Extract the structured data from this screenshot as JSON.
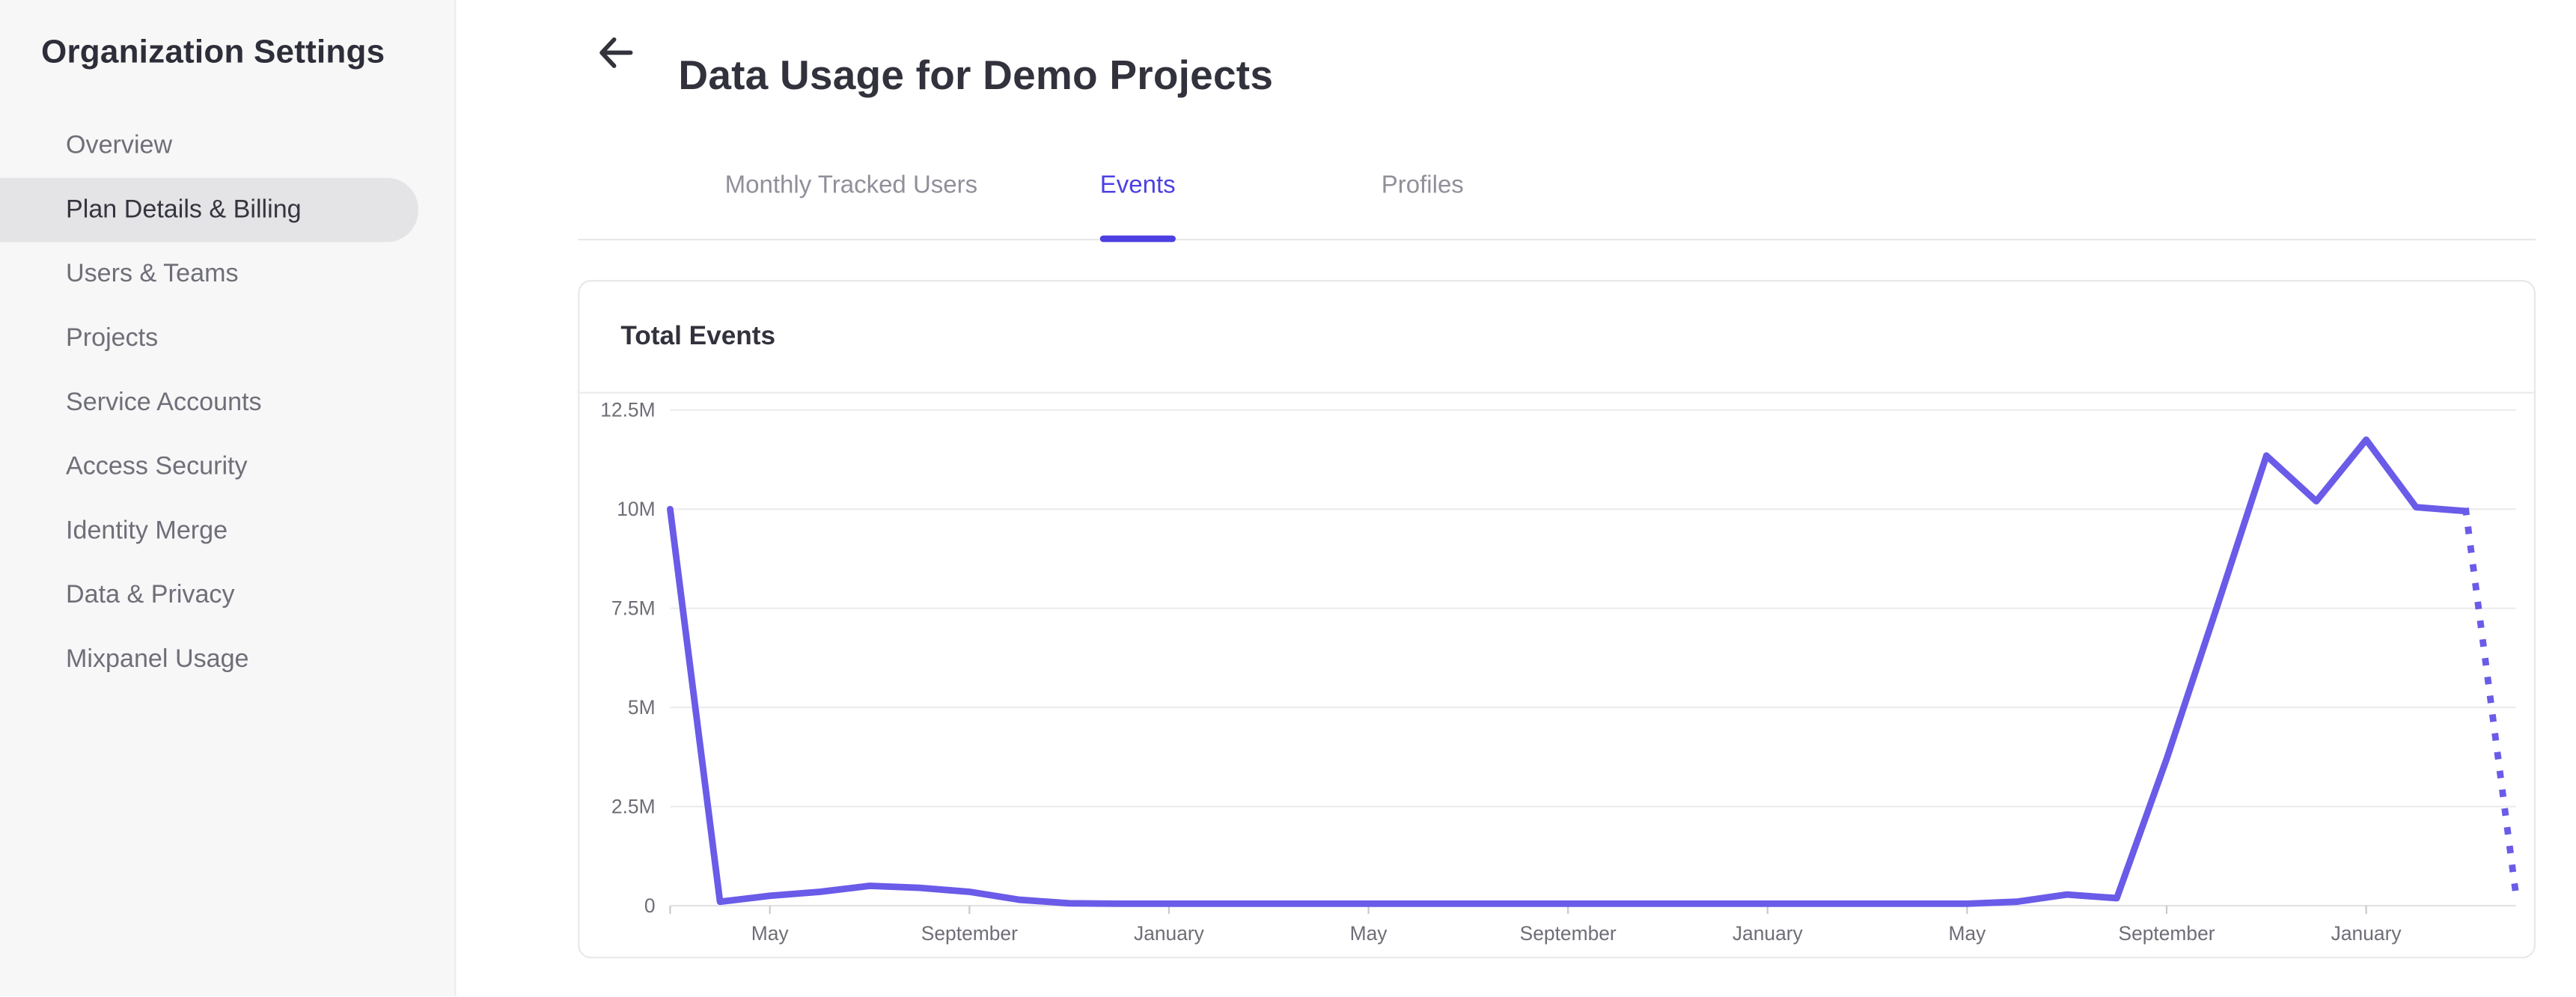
{
  "colors": {
    "accent": "#4c40e2",
    "chart_line": "#6a5be8",
    "sidebar_bg": "#f7f7f7",
    "active_pill_bg": "#e4e4e6",
    "grid_line": "#ececee"
  },
  "sidebar": {
    "title": "Organization Settings",
    "items": [
      {
        "label": "Overview",
        "active": false
      },
      {
        "label": "Plan Details & Billing",
        "active": true
      },
      {
        "label": "Users & Teams",
        "active": false
      },
      {
        "label": "Projects",
        "active": false
      },
      {
        "label": "Service Accounts",
        "active": false
      },
      {
        "label": "Access Security",
        "active": false
      },
      {
        "label": "Identity Merge",
        "active": false
      },
      {
        "label": "Data & Privacy",
        "active": false
      },
      {
        "label": "Mixpanel Usage",
        "active": false
      }
    ]
  },
  "header": {
    "title": "Data Usage for Demo Projects",
    "back_icon": "left-arrow"
  },
  "tabs": [
    {
      "label": "Monthly Tracked Users",
      "active": false
    },
    {
      "label": "Events",
      "active": true
    },
    {
      "label": "Profiles",
      "active": false
    }
  ],
  "card": {
    "title": "Total Events"
  },
  "chart_data": {
    "type": "line",
    "title": "Total Events",
    "y_unit": "events (millions)",
    "series": [
      {
        "name": "Total Events",
        "values_millions": [
          10,
          0.1,
          0.25,
          0.35,
          0.5,
          0.45,
          0.35,
          0.15,
          0.06,
          0.05,
          0.05,
          0.05,
          0.05,
          0.05,
          0.05,
          0.05,
          0.05,
          0.05,
          0.05,
          0.05,
          0.05,
          0.05,
          0.05,
          0.05,
          0.05,
          0.05,
          0.05,
          0.1,
          0.28,
          0.19,
          3.7,
          7.5,
          11.35,
          10.2,
          11.75,
          10.05,
          9.95,
          0.3
        ]
      }
    ],
    "points_are_monthly": true,
    "projected_from_index": 36,
    "projection_style": "dotted",
    "x_tick_labels": [
      "May",
      "September",
      "January",
      "May",
      "September",
      "January",
      "May",
      "September",
      "January"
    ],
    "x_tick_indices": [
      2,
      6,
      10,
      14,
      18,
      22,
      26,
      30,
      34
    ],
    "y_tick_labels": [
      "0",
      "2.5M",
      "5M",
      "7.5M",
      "10M",
      "12.5M"
    ],
    "y_tick_values_millions": [
      0,
      2.5,
      5,
      7.5,
      10,
      12.5
    ],
    "ylim_millions": [
      0,
      12.5
    ],
    "grid": "horizontal",
    "legend": "none"
  }
}
